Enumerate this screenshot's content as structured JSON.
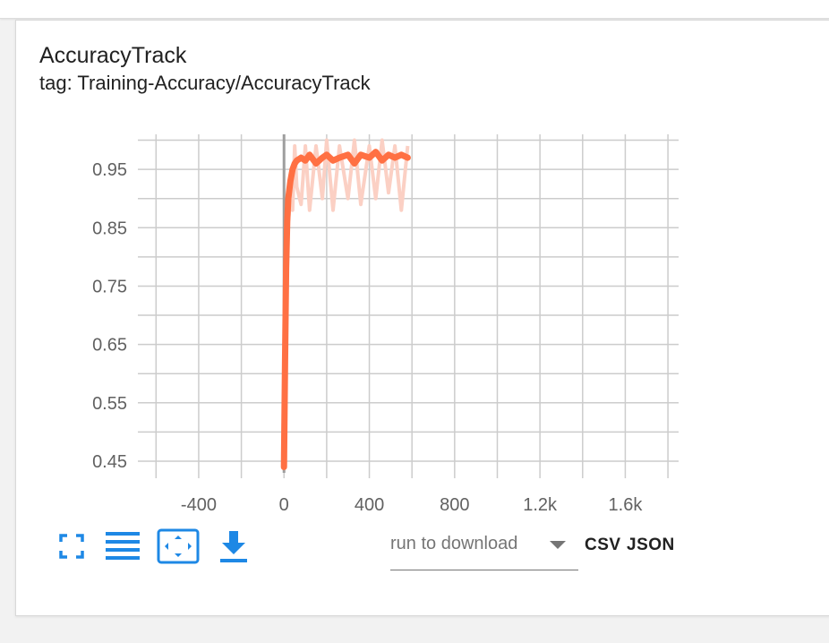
{
  "card": {
    "title": "AccuracyTrack",
    "tag": "tag: Training-Accuracy/AccuracyTrack"
  },
  "colors": {
    "series": "#ff7043",
    "series_faded": "#fbd0c4",
    "grid": "#cccccc",
    "zero_axis": "#9e9e9e",
    "icon_blue": "#1e88e5"
  },
  "toolbar": {
    "icons": [
      "fullscreen-icon",
      "toggle-legend-icon",
      "fit-domain-icon",
      "download-icon"
    ]
  },
  "download": {
    "placeholder": "run to download",
    "csv_label": "CSV",
    "json_label": "JSON"
  },
  "chart_data": {
    "type": "line",
    "title": "AccuracyTrack",
    "subtitle": "tag: Training-Accuracy/AccuracyTrack",
    "xlabel": "",
    "ylabel": "",
    "xlim": [
      -660,
      1850
    ],
    "ylim": [
      0.43,
      1.01
    ],
    "x_ticks": [
      -400,
      0,
      400,
      800,
      1200,
      1600
    ],
    "x_tick_labels": [
      "-400",
      "0",
      "400",
      "800",
      "1.2k",
      "1.6k"
    ],
    "y_ticks": [
      0.45,
      0.55,
      0.65,
      0.75,
      0.85,
      0.95
    ],
    "y_tick_labels": [
      "0.45",
      "0.55",
      "0.65",
      "0.75",
      "0.85",
      "0.95"
    ],
    "grid": true,
    "legend": "none",
    "series": [
      {
        "name": "",
        "style": "smoothed",
        "x": [
          0,
          5,
          10,
          15,
          20,
          30,
          40,
          50,
          60,
          80,
          100,
          120,
          150,
          180,
          200,
          230,
          260,
          300,
          330,
          360,
          400,
          430,
          460,
          490,
          520,
          550,
          580
        ],
        "y": [
          0.44,
          0.62,
          0.78,
          0.86,
          0.9,
          0.93,
          0.95,
          0.96,
          0.965,
          0.97,
          0.965,
          0.975,
          0.96,
          0.97,
          0.975,
          0.965,
          0.97,
          0.975,
          0.96,
          0.975,
          0.97,
          0.98,
          0.965,
          0.975,
          0.97,
          0.975,
          0.97
        ]
      },
      {
        "name": "",
        "style": "raw",
        "x": [
          0,
          5,
          10,
          15,
          20,
          30,
          40,
          50,
          60,
          80,
          100,
          120,
          150,
          180,
          200,
          230,
          260,
          300,
          330,
          360,
          400,
          430,
          460,
          490,
          520,
          550,
          580
        ],
        "y": [
          0.44,
          0.58,
          0.72,
          0.8,
          0.86,
          0.9,
          0.88,
          0.99,
          0.92,
          0.89,
          0.99,
          0.88,
          0.99,
          0.9,
          1.0,
          0.88,
          0.99,
          0.9,
          1.0,
          0.89,
          0.99,
          0.9,
          1.0,
          0.91,
          0.99,
          0.88,
          0.99
        ]
      }
    ]
  }
}
